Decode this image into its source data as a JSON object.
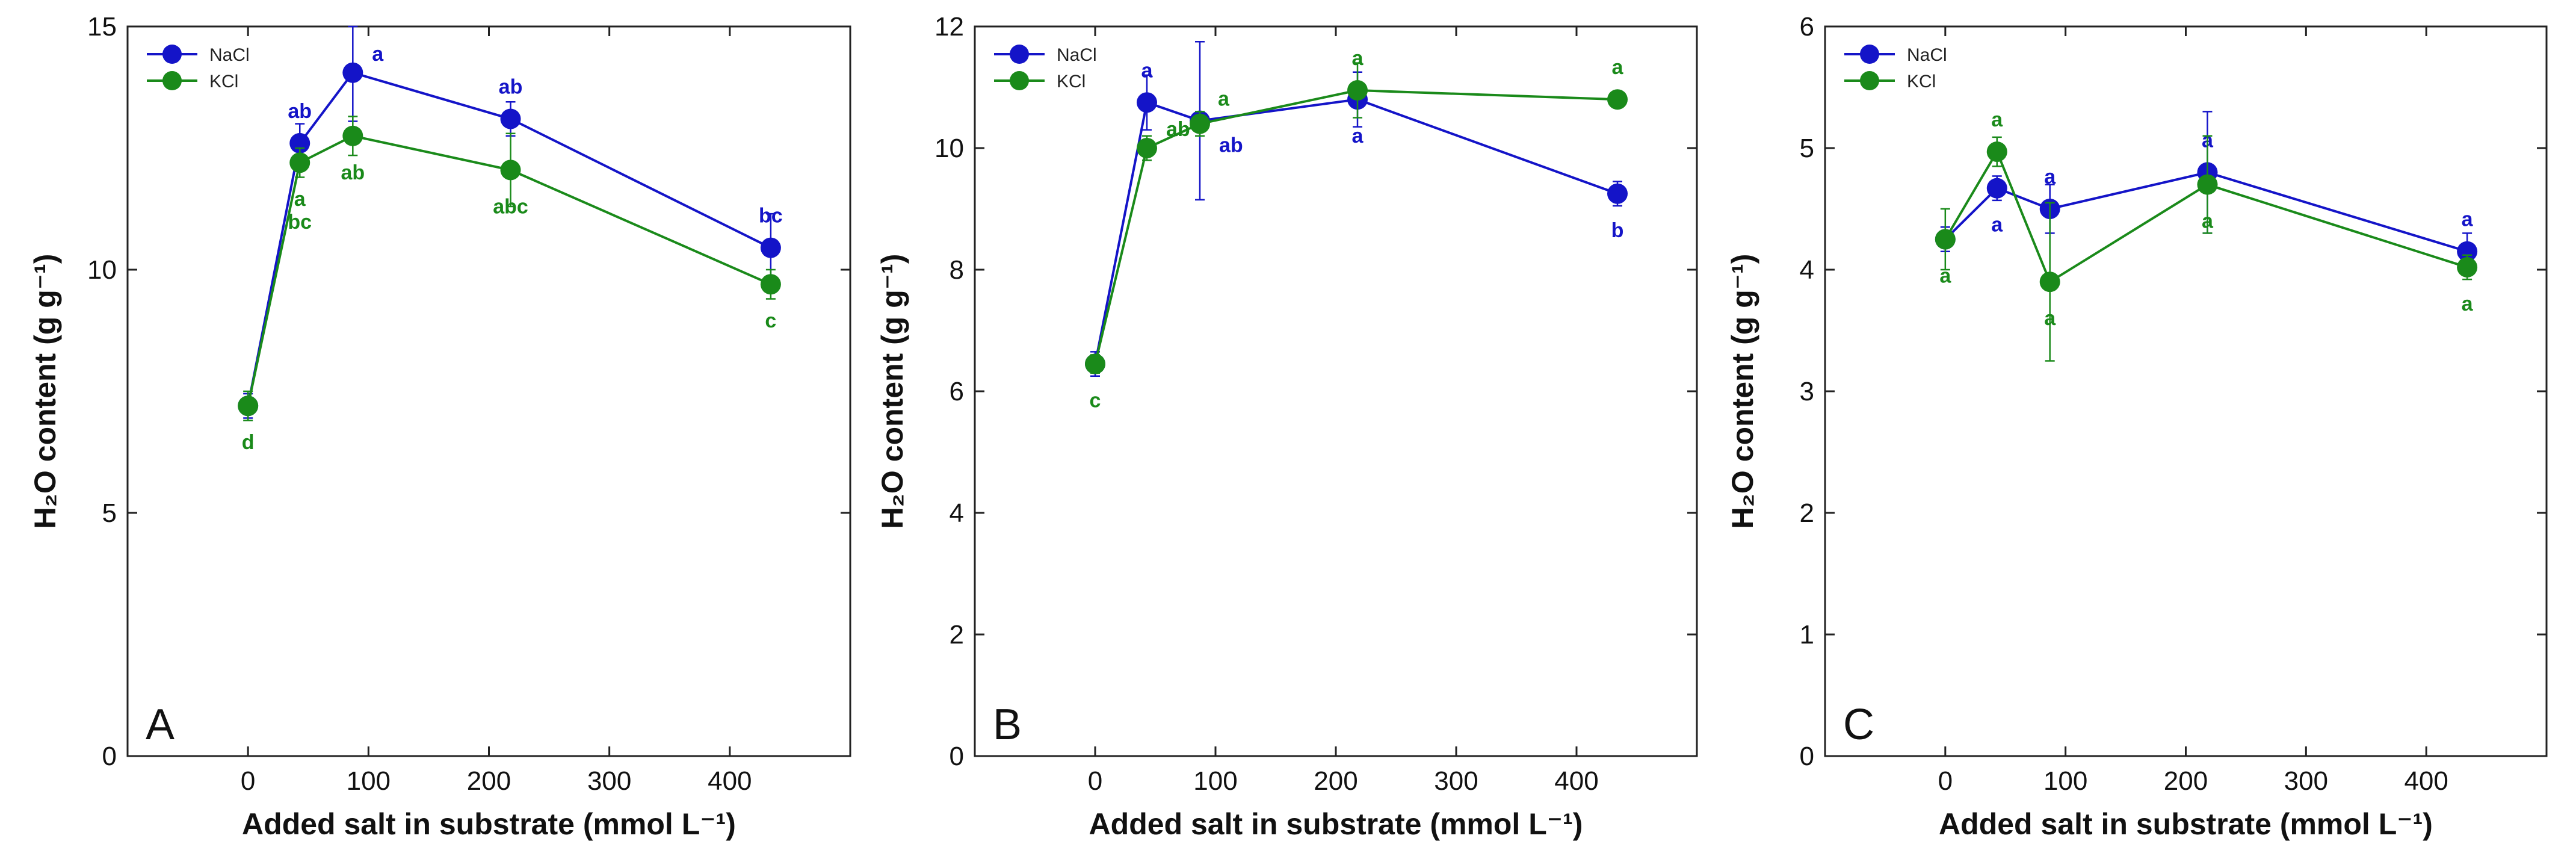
{
  "colors": {
    "nacl": "#1414c8",
    "kcl": "#1a8a1a",
    "axis": "#222222"
  },
  "chart_data": [
    {
      "type": "line",
      "panel": "A",
      "xlabel": "Added salt in substrate (mmol L⁻¹)",
      "ylabel": "H₂O content (g g⁻¹)",
      "xlim": [
        -100,
        500
      ],
      "ylim": [
        0,
        15
      ],
      "xticks": [
        0,
        100,
        200,
        300,
        400
      ],
      "yticks": [
        0,
        5,
        10,
        15
      ],
      "legend": "top-left",
      "series": [
        {
          "name": "NaCl",
          "color_key": "nacl",
          "x": [
            0,
            43,
            87,
            218,
            434
          ],
          "y": [
            7.2,
            12.6,
            14.05,
            13.1,
            10.45
          ],
          "err": [
            0.25,
            0.4,
            1.0,
            0.35,
            0.7
          ],
          "labels": [
            "",
            "ab",
            "a",
            "ab",
            "bc"
          ],
          "label_pos": [
            "",
            "above",
            "right",
            "above",
            "above"
          ]
        },
        {
          "name": "KCl",
          "color_key": "kcl",
          "x": [
            0,
            43,
            87,
            218,
            434
          ],
          "y": [
            7.2,
            12.2,
            12.75,
            12.05,
            9.7
          ],
          "err": [
            0.3,
            0.3,
            0.4,
            0.75,
            0.3
          ],
          "labels": [
            "d",
            "a\nbc",
            "ab",
            "abc",
            "c"
          ],
          "label_pos": [
            "below",
            "below",
            "below",
            "below",
            "below"
          ]
        }
      ]
    },
    {
      "type": "line",
      "panel": "B",
      "xlabel": "Added salt in substrate (mmol L⁻¹)",
      "ylabel": "H₂O content (g g⁻¹)",
      "xlim": [
        -100,
        500
      ],
      "ylim": [
        0,
        12
      ],
      "xticks": [
        0,
        100,
        200,
        300,
        400
      ],
      "yticks": [
        0,
        2,
        4,
        6,
        8,
        10,
        12
      ],
      "legend": "top-left",
      "series": [
        {
          "name": "NaCl",
          "color_key": "nacl",
          "x": [
            0,
            43,
            87,
            218,
            434
          ],
          "y": [
            6.45,
            10.75,
            10.45,
            10.8,
            9.25
          ],
          "err": [
            0.2,
            0.45,
            1.3,
            0.45,
            0.2
          ],
          "labels": [
            "",
            "a",
            "ab",
            "a",
            "b"
          ],
          "label_pos": [
            "",
            "above",
            "below-right",
            "below",
            "below"
          ]
        },
        {
          "name": "KCl",
          "color_key": "kcl",
          "x": [
            0,
            43,
            87,
            218,
            434
          ],
          "y": [
            6.45,
            10.0,
            10.4,
            10.95,
            10.8
          ],
          "err": [
            0.15,
            0.2,
            0.2,
            0.45,
            0.1
          ],
          "labels": [
            "c",
            "ab",
            "a",
            "a",
            "a"
          ],
          "label_pos": [
            "below",
            "right",
            "above-right",
            "above",
            "above"
          ]
        }
      ]
    },
    {
      "type": "line",
      "panel": "C",
      "xlabel": "Added salt in substrate (mmol L⁻¹)",
      "ylabel": "H₂O content (g g⁻¹)",
      "xlim": [
        -100,
        500
      ],
      "ylim": [
        0,
        6
      ],
      "xticks": [
        0,
        100,
        200,
        300,
        400
      ],
      "yticks": [
        0,
        1,
        2,
        3,
        4,
        5,
        6
      ],
      "legend": "top-left",
      "series": [
        {
          "name": "NaCl",
          "color_key": "nacl",
          "x": [
            0,
            43,
            87,
            218,
            434
          ],
          "y": [
            4.25,
            4.67,
            4.5,
            4.8,
            4.15
          ],
          "err": [
            0.1,
            0.1,
            0.2,
            0.5,
            0.15
          ],
          "labels": [
            "",
            "a",
            "a",
            "a",
            "a"
          ],
          "label_pos": [
            "",
            "below",
            "above",
            "above",
            "above"
          ]
        },
        {
          "name": "KCl",
          "color_key": "kcl",
          "x": [
            0,
            43,
            87,
            218,
            434
          ],
          "y": [
            4.25,
            4.97,
            3.9,
            4.7,
            4.02
          ],
          "err": [
            0.25,
            0.12,
            0.65,
            0.4,
            0.1
          ],
          "labels": [
            "a",
            "a",
            "a",
            "a",
            "a"
          ],
          "label_pos": [
            "below",
            "above",
            "below",
            "below",
            "below"
          ]
        }
      ]
    }
  ]
}
